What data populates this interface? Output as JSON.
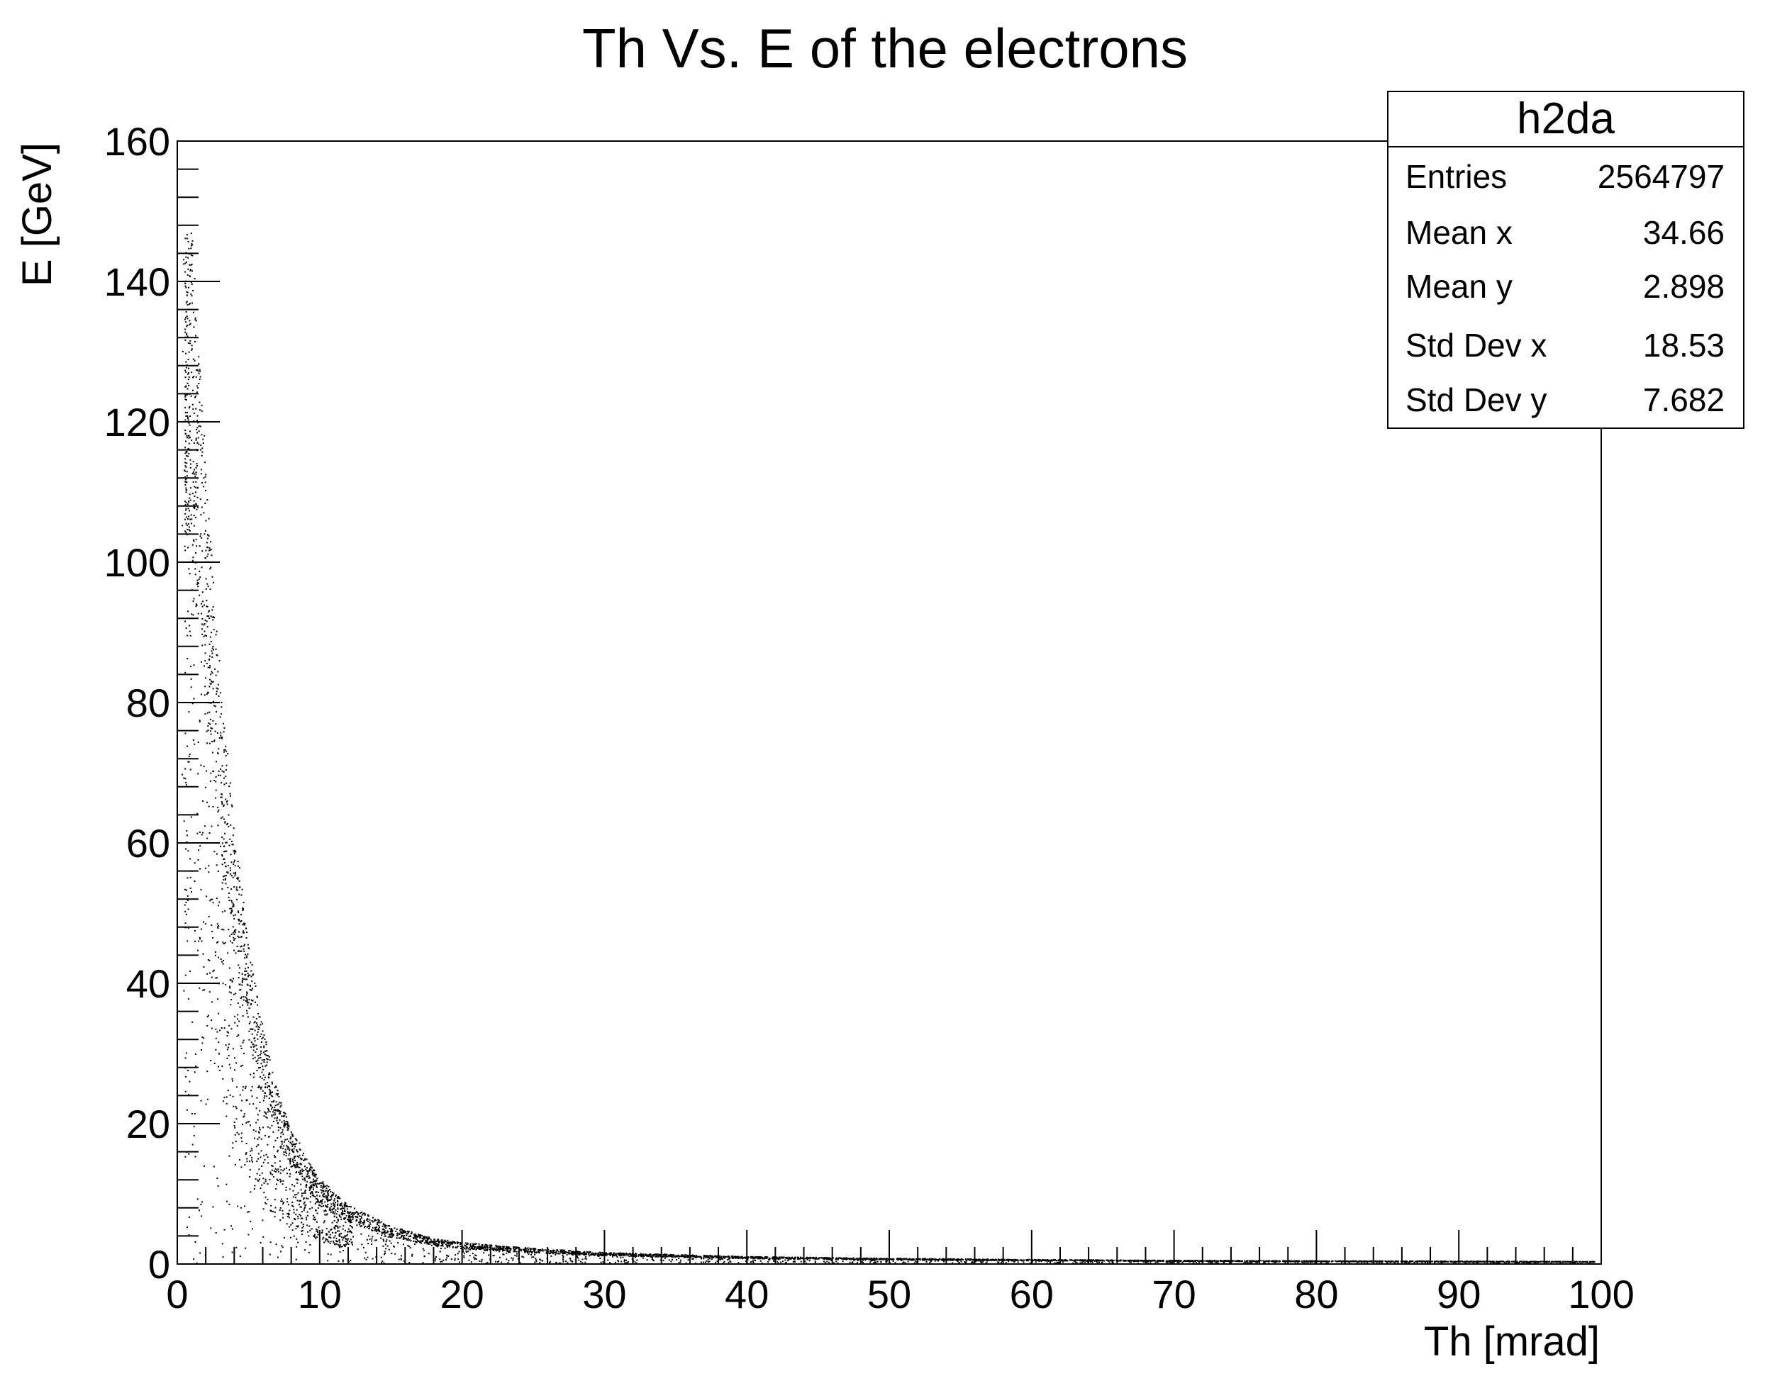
{
  "chart_data": {
    "type": "scatter",
    "title": "Th  Vs. E of the electrons",
    "xlabel": "Th [mrad]",
    "ylabel": "E [GeV]",
    "xlim": [
      0,
      100
    ],
    "ylim": [
      0,
      160
    ],
    "x_ticks": [
      "0",
      "10",
      "20",
      "30",
      "40",
      "50",
      "60",
      "70",
      "80",
      "90",
      "100"
    ],
    "y_ticks": [
      "0",
      "20",
      "40",
      "60",
      "80",
      "100",
      "120",
      "140",
      "160"
    ],
    "grid": false,
    "legend_position": "top-right",
    "point_color": "#000000",
    "density_ridge": {
      "x": [
        1,
        2,
        3,
        4,
        5,
        6,
        7,
        8,
        10,
        12,
        15,
        18,
        20,
        25,
        30,
        40,
        50,
        60,
        70,
        80,
        90,
        100
      ],
      "y": [
        125,
        95,
        70,
        52,
        38,
        28,
        21,
        16,
        10,
        7,
        4.5,
        3,
        2.5,
        1.8,
        1.3,
        0.8,
        0.6,
        0.45,
        0.35,
        0.3,
        0.25,
        0.2
      ]
    },
    "stats_box": {
      "title": "h2da",
      "rows": [
        {
          "label": "Entries",
          "value": "2564797"
        },
        {
          "label": "Mean x",
          "value": "34.66"
        },
        {
          "label": "Mean y",
          "value": "2.898"
        },
        {
          "label": "Std Dev x",
          "value": "18.53"
        },
        {
          "label": "Std Dev y",
          "value": "7.682"
        }
      ]
    }
  }
}
